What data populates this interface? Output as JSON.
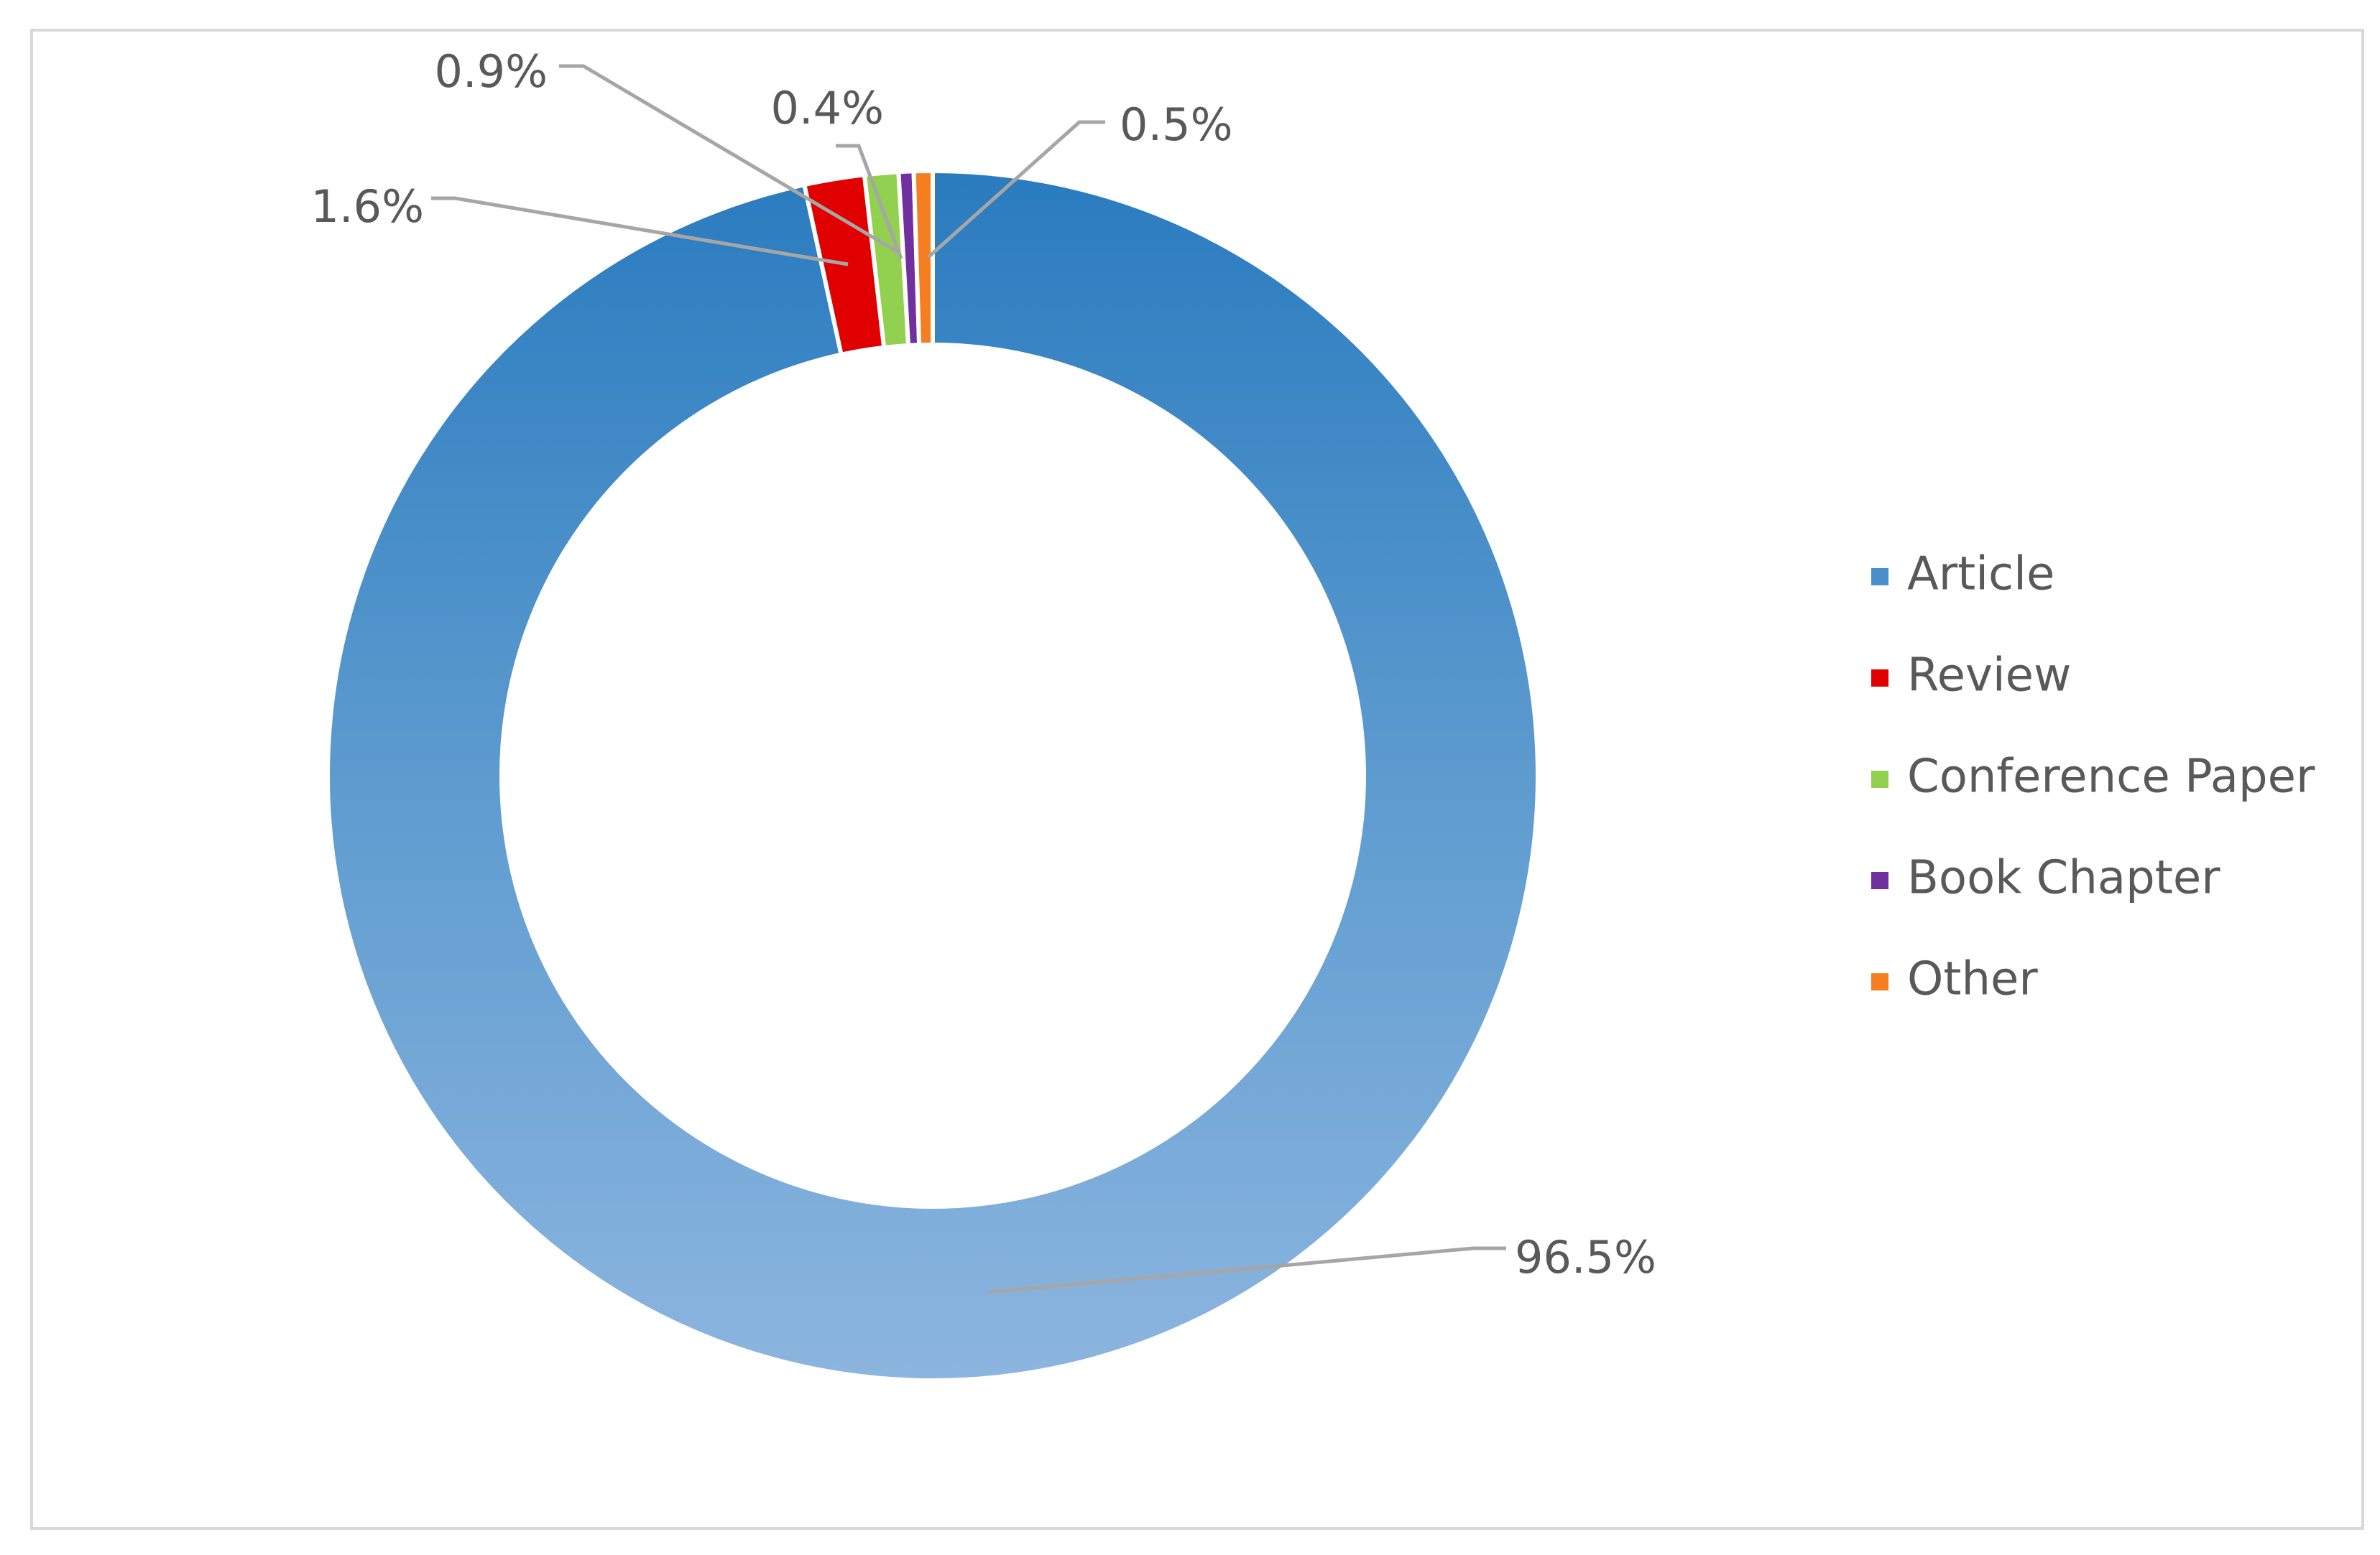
{
  "chart_data": {
    "type": "pie",
    "variant": "doughnut",
    "title": "",
    "categories": [
      "Article",
      "Review",
      "Conference Paper",
      "Book Chapter",
      "Other"
    ],
    "values": [
      96.5,
      1.6,
      0.9,
      0.4,
      0.5
    ],
    "data_labels": [
      "96.5%",
      "1.6%",
      "0.9%",
      "0.4%",
      "0.5%"
    ],
    "colors": [
      "#2e7fc2",
      "#e00000",
      "#92d050",
      "#7030a0",
      "#f57f20"
    ],
    "start_angle_deg": 0,
    "direction": "clockwise",
    "legend_position": "right"
  }
}
